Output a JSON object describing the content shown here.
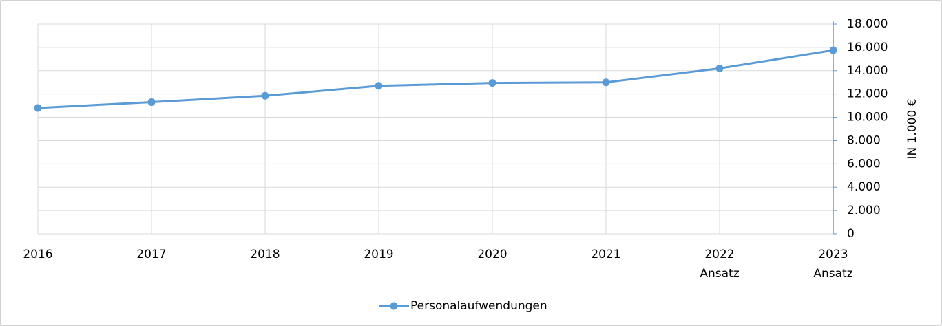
{
  "chart_data": {
    "type": "line",
    "y_axis_label": "IN 1.000 €",
    "categories": [
      "2016",
      "2017",
      "2018",
      "2019",
      "2020",
      "2021",
      "2022\nAnsatz",
      "2023\nAnsatz"
    ],
    "series": [
      {
        "name": "Personalaufwendungen",
        "color": "#5b9bd5",
        "values": [
          10800,
          11300,
          11850,
          12700,
          12950,
          13000,
          14200,
          15750
        ]
      }
    ],
    "ylim": [
      0,
      18000
    ],
    "yticks": [
      0,
      {
        "value": 2000,
        "label": "2.000"
      },
      {
        "value": 4000,
        "label": "4.000"
      },
      {
        "value": 6000,
        "label": "6.000"
      },
      {
        "value": 8000,
        "label": "8.000"
      },
      {
        "value": 10000,
        "label": "10.000"
      },
      {
        "value": 12000,
        "label": "12.000"
      },
      {
        "value": 14000,
        "label": "14.000"
      },
      {
        "value": 16000,
        "label": "16.000"
      },
      {
        "value": 18000,
        "label": "18.000"
      }
    ],
    "y_axis_side": "right",
    "grid": true,
    "legend": "bottom"
  }
}
